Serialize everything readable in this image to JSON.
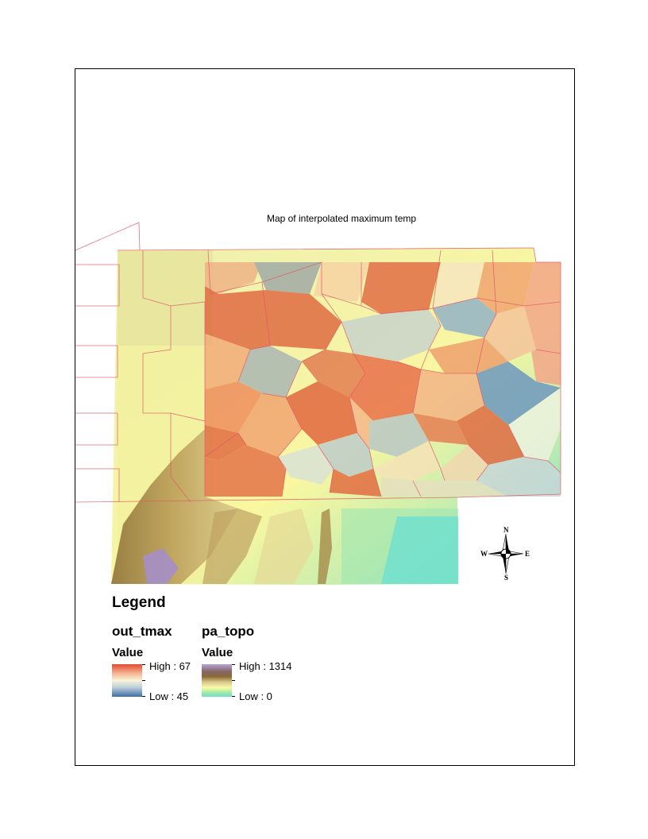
{
  "map": {
    "title": "Map of interpolated maximum temp",
    "compass": {
      "north": "N",
      "south": "S",
      "east": "E",
      "west": "W"
    }
  },
  "legend": {
    "heading": "Legend",
    "layers": [
      {
        "name": "out_tmax",
        "field": "Value",
        "high_label": "High : 67",
        "low_label": "Low : 45",
        "colors": [
          "#e34a33",
          "#f7f5d7",
          "#3b6ea8"
        ]
      },
      {
        "name": "pa_topo",
        "field": "Value",
        "high_label": "High : 1314",
        "low_label": "Low : 0",
        "colors": [
          "#b8a6d1",
          "#8a6b33",
          "#fbfba5",
          "#6ee0cf"
        ]
      }
    ]
  }
}
